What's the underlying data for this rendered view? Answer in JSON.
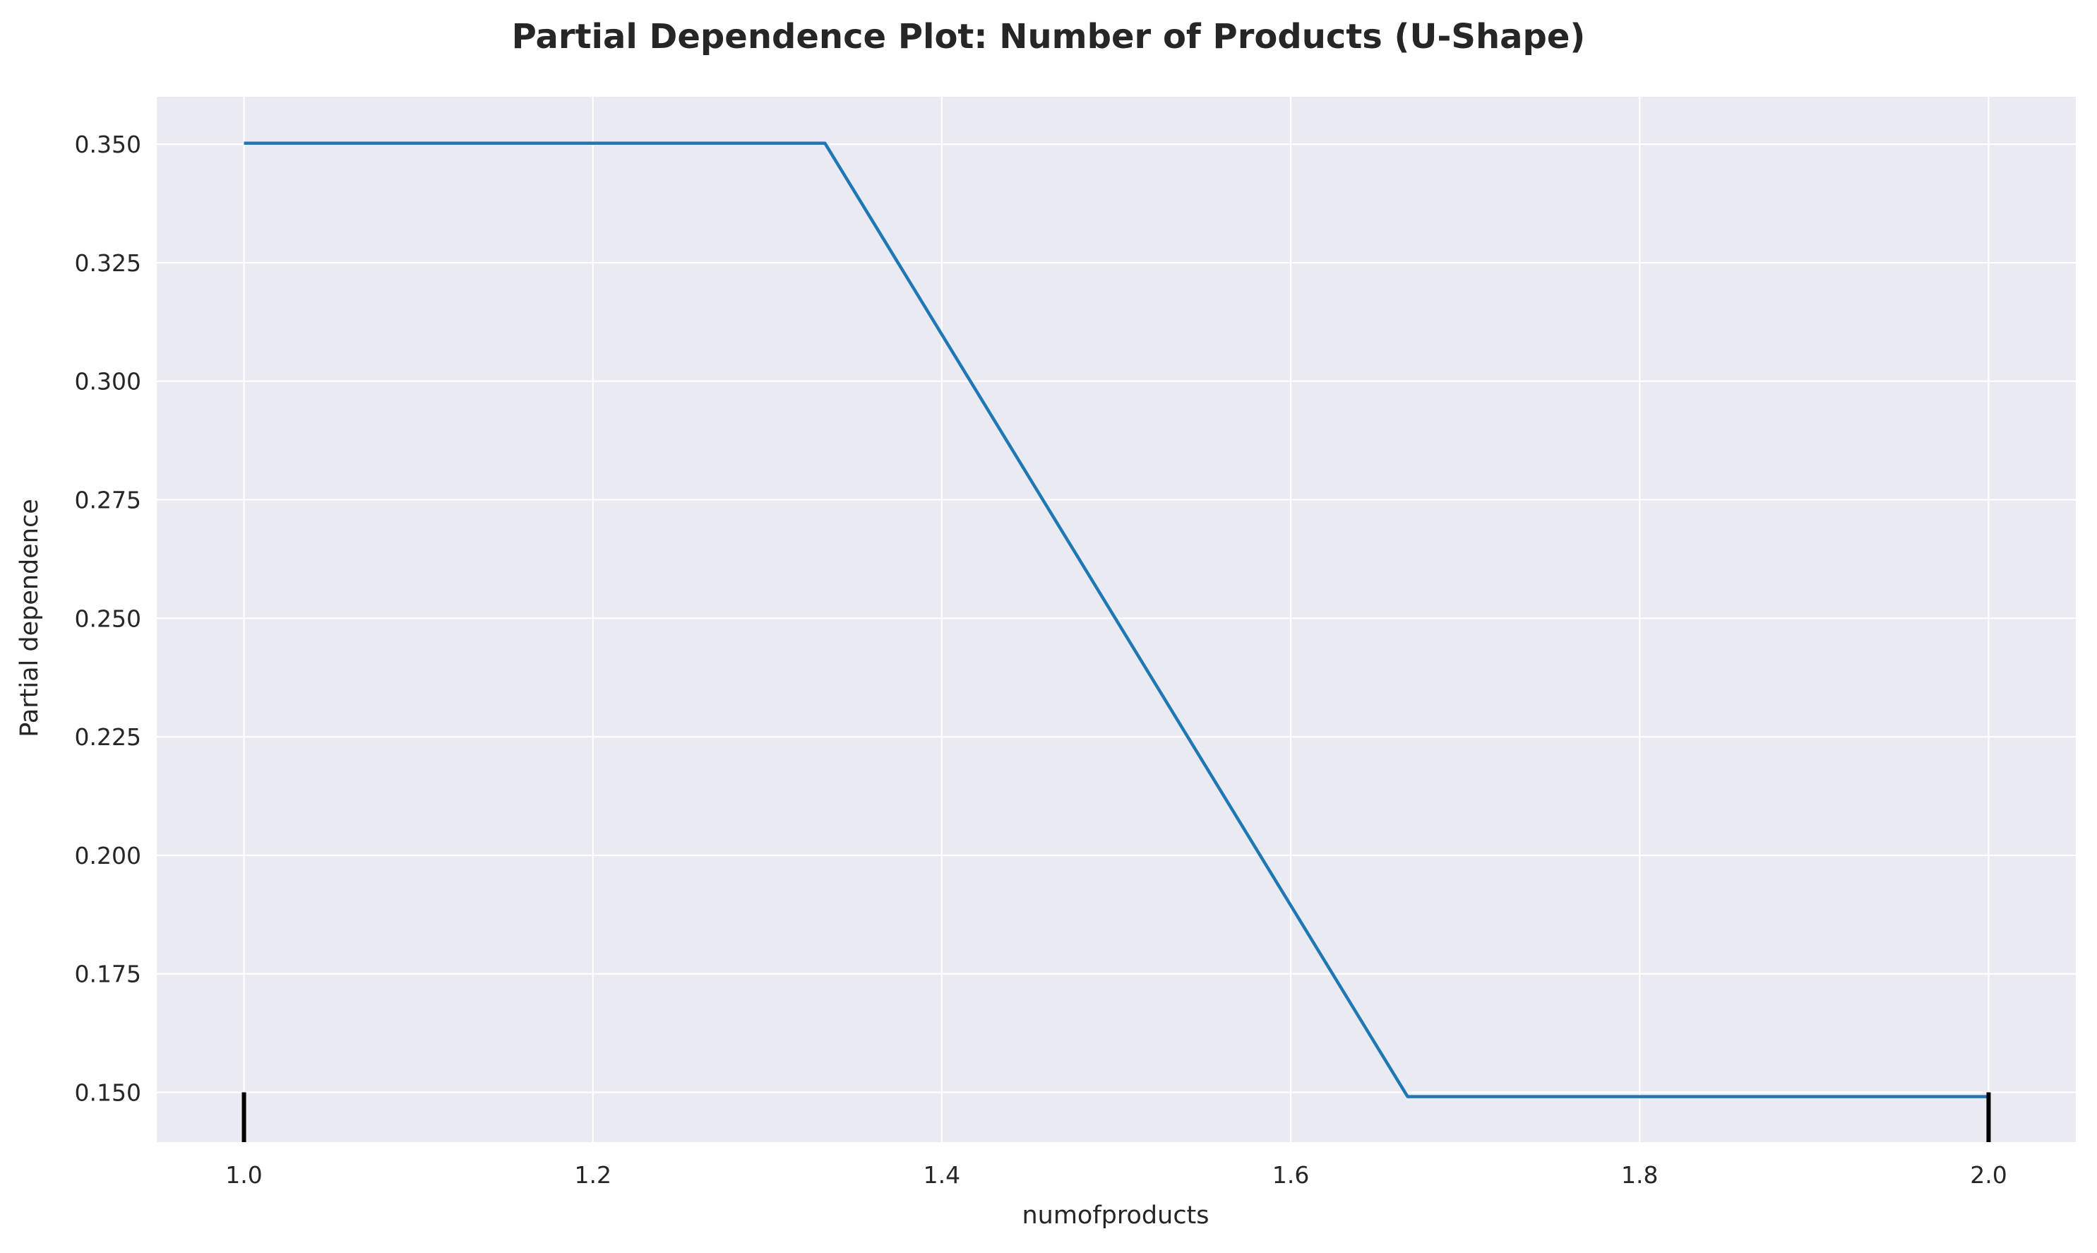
{
  "chart_data": {
    "type": "line",
    "title": "Partial Dependence Plot: Number of Products (U-Shape)",
    "xlabel": "numofproducts",
    "ylabel": "Partial dependence",
    "xlim": [
      0.95,
      2.05
    ],
    "ylim": [
      0.1395,
      0.36
    ],
    "x_ticks": [
      1.0,
      1.2,
      1.4,
      1.6,
      1.8,
      2.0
    ],
    "x_tick_labels": [
      "1.0",
      "1.2",
      "1.4",
      "1.6",
      "1.8",
      "2.0"
    ],
    "y_ticks": [
      0.15,
      0.175,
      0.2,
      0.225,
      0.25,
      0.275,
      0.3,
      0.325,
      0.35
    ],
    "y_tick_labels": [
      "0.150",
      "0.175",
      "0.200",
      "0.225",
      "0.250",
      "0.275",
      "0.300",
      "0.325",
      "0.350"
    ],
    "grid": true,
    "series": [
      {
        "x": [
          1.0,
          1.333,
          1.667,
          2.0
        ],
        "y": [
          0.3502,
          0.3502,
          0.1491,
          0.1491
        ],
        "color": "#1f77b4"
      }
    ],
    "rug": {
      "x": [
        1.0,
        2.0
      ],
      "color": "#000000"
    },
    "colors": {
      "plot_background": "#eaeaf2",
      "grid": "#ffffff",
      "line": "#1f77b4",
      "text": "#262626"
    }
  }
}
